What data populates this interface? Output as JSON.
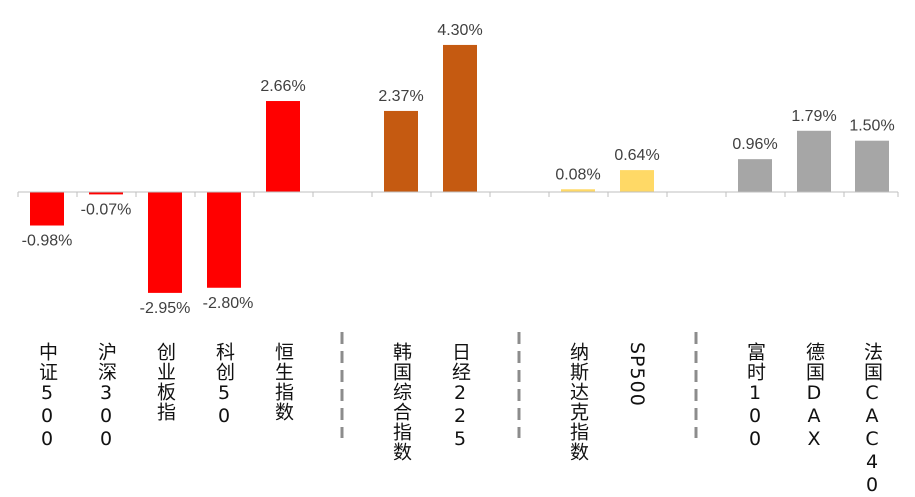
{
  "chart_data": {
    "type": "bar",
    "categories": [
      "中证500",
      "沪深300",
      "创业板指",
      "科创50",
      "恒生指数",
      "韩国综合指数",
      "日经225",
      "纳斯达克指数",
      "SP500",
      "富时100",
      "德国DAX",
      "法国CAC40"
    ],
    "values": [
      -0.98,
      -0.07,
      -2.95,
      -2.8,
      2.66,
      2.37,
      4.3,
      0.08,
      0.64,
      0.96,
      1.79,
      1.5
    ],
    "data_labels": [
      "-0.98%",
      "-0.07%",
      "-2.95%",
      "-2.80%",
      "2.66%",
      "2.37%",
      "4.30%",
      "0.08%",
      "0.64%",
      "0.96%",
      "1.79%",
      "1.50%"
    ],
    "groups": [
      {
        "members": [
          "中证500",
          "沪深300",
          "创业板指",
          "科创50",
          "恒生指数"
        ],
        "color": "#ff0000"
      },
      {
        "members": [
          "韩国综合指数",
          "日经225"
        ],
        "color": "#c55a11"
      },
      {
        "members": [
          "纳斯达克指数",
          "SP500"
        ],
        "color": "#ffd966"
      },
      {
        "members": [
          "富时100",
          "德国DAX",
          "法国CAC40"
        ],
        "color": "#a6a6a6"
      }
    ],
    "title": "",
    "xlabel": "",
    "ylabel": "",
    "ylim": [
      -3.2,
      4.6
    ],
    "grid": false,
    "legend": "none"
  }
}
